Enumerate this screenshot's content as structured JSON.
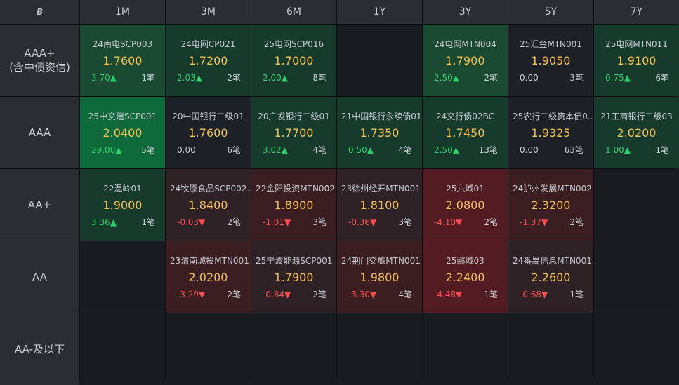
{
  "logo": "B",
  "tenors": [
    "1M",
    "3M",
    "6M",
    "1Y",
    "3Y",
    "5Y",
    "7Y"
  ],
  "ratings": [
    {
      "line1": "AAA+",
      "line2": "(含中债资信)"
    },
    {
      "line1": "AAA",
      "line2": ""
    },
    {
      "line1": "AA+",
      "line2": ""
    },
    {
      "line1": "AA",
      "line2": ""
    },
    {
      "line1": "AA-及以下",
      "line2": ""
    }
  ],
  "up_arrow": "▲",
  "down_arrow": "▼",
  "colors": {
    "up": "#2fcf6a",
    "down": "#ff4e4e",
    "yield": "#f5c04f"
  },
  "cells": [
    [
      {
        "name": "24南电SCP003",
        "yield": "1.7600",
        "chg": "3.70▲",
        "count": "1笔"
      },
      {
        "name": "24电网CP021",
        "yield": "1.7200",
        "chg": "2.03▲",
        "count": "2笔"
      },
      {
        "name": "25电网SCP016",
        "yield": "1.7000",
        "chg": "2.00▲",
        "count": "8笔"
      },
      null,
      {
        "name": "24电网MTN004",
        "yield": "1.7900",
        "chg": "2.50▲",
        "count": "2笔"
      },
      {
        "name": "25汇金MTN001",
        "yield": "1.9050",
        "chg": "0.00",
        "count": "3笔"
      },
      {
        "name": "25电网MTN011",
        "yield": "1.9100",
        "chg": "0.75▲",
        "count": "6笔"
      }
    ],
    [
      {
        "name": "25中交建SCP001",
        "yield": "2.0400",
        "chg": "29.00▲",
        "count": "5笔"
      },
      {
        "name": "20中国银行二级01",
        "yield": "1.7600",
        "chg": "0.00",
        "count": "6笔"
      },
      {
        "name": "20广发银行二级01",
        "yield": "1.7700",
        "chg": "3.02▲",
        "count": "4笔"
      },
      {
        "name": "21中国银行永续债01",
        "yield": "1.7350",
        "chg": "0.50▲",
        "count": "4笔"
      },
      {
        "name": "24交行债02BC",
        "yield": "1.7450",
        "chg": "2.50▲",
        "count": "13笔"
      },
      {
        "name": "25农行二级资本债0...",
        "yield": "1.9325",
        "chg": "0.00",
        "count": "63笔"
      },
      {
        "name": "21工商银行二级03",
        "yield": "2.0200",
        "chg": "1.00▲",
        "count": "1笔"
      }
    ],
    [
      {
        "name": "22温岭01",
        "yield": "1.9000",
        "chg": "3.36▲",
        "count": "1笔"
      },
      {
        "name": "24牧原食品SCP002...",
        "yield": "1.8400",
        "chg": "-0.03▼",
        "count": "2笔"
      },
      {
        "name": "22金阳投资MTN002",
        "yield": "1.8900",
        "chg": "-1.01▼",
        "count": "3笔"
      },
      {
        "name": "23徐州经开MTN001",
        "yield": "1.8100",
        "chg": "-0.36▼",
        "count": "3笔"
      },
      {
        "name": "25六城01",
        "yield": "2.0800",
        "chg": "-4.10▼",
        "count": "2笔"
      },
      {
        "name": "24泸州发展MTN002",
        "yield": "2.3200",
        "chg": "-1.37▼",
        "count": "2笔"
      },
      null
    ],
    [
      null,
      {
        "name": "23渭南城投MTN001",
        "yield": "2.0200",
        "chg": "-3.29▼",
        "count": "2笔"
      },
      {
        "name": "25宁波能源SCP001",
        "yield": "1.7900",
        "chg": "-0.84▼",
        "count": "2笔"
      },
      {
        "name": "24荆门交旅MTN001",
        "yield": "1.9800",
        "chg": "-3.30▼",
        "count": "4笔"
      },
      {
        "name": "25邵城03",
        "yield": "2.2400",
        "chg": "-4.48▼",
        "count": "1笔"
      },
      {
        "name": "24番禺信息MTN001",
        "yield": "2.2600",
        "chg": "-0.68▼",
        "count": "1笔"
      },
      null
    ],
    [
      null,
      null,
      null,
      null,
      null,
      null,
      null
    ]
  ]
}
